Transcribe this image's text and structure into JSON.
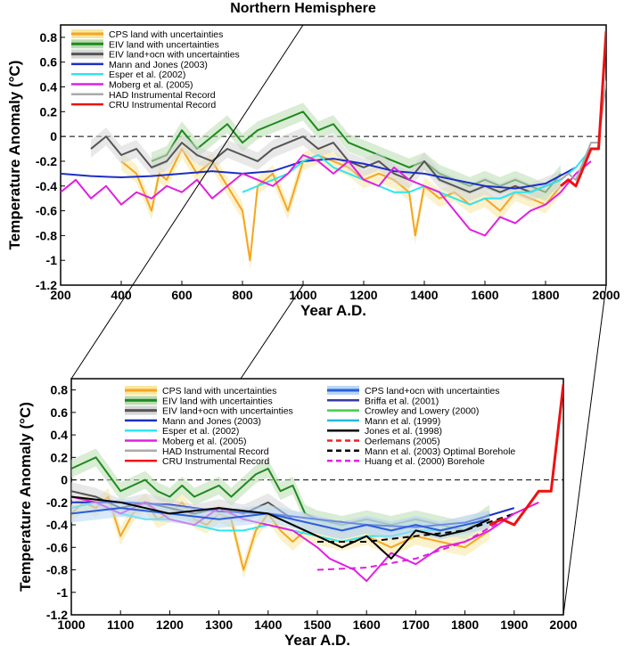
{
  "chart_data": [
    {
      "type": "line",
      "title": "Northern Hemisphere",
      "xlabel": "Year A.D.",
      "ylabel": "Temperature Anomaly (°C)",
      "xlim": [
        200,
        2000
      ],
      "ylim": [
        -1.2,
        0.9
      ],
      "xticks": [
        "200",
        "400",
        "600",
        "800",
        "1000",
        "1200",
        "1400",
        "1600",
        "1800",
        "2000"
      ],
      "yticks": [
        "0.8",
        "0.6",
        "0.4",
        "0.2",
        "0",
        "-0.2",
        "-0.4",
        "-0.6",
        "-0.8",
        "-1",
        "-1.2"
      ],
      "reference_line": 0,
      "legend": [
        {
          "label": "CPS land with uncertainties",
          "color": "#f5a623",
          "band": "#f7e7a3"
        },
        {
          "label": "EIV land with uncertainties",
          "color": "#1f8a1f",
          "band": "#b9dcb0"
        },
        {
          "label": "EIV land+ocn with uncertainties",
          "color": "#555555",
          "band": "#d6d6d6"
        },
        {
          "label": "Mann and Jones (2003)",
          "color": "#1c2fc4"
        },
        {
          "label": "Esper et al. (2002)",
          "color": "#2fe6f0"
        },
        {
          "label": "Moberg et al. (2005)",
          "color": "#e020e0"
        },
        {
          "label": "HAD Instrumental Record",
          "color": "#aaaaaa"
        },
        {
          "label": "CRU Instrumental Record",
          "color": "#ee1111"
        }
      ],
      "series": [
        {
          "name": "CPS land with uncertainties",
          "x": [
            400,
            450,
            500,
            525,
            550,
            600,
            650,
            700,
            750,
            800,
            825,
            850,
            900,
            950,
            1000,
            1050,
            1100,
            1150,
            1200,
            1250,
            1300,
            1350,
            1370,
            1400,
            1450,
            1500,
            1550,
            1600,
            1650,
            1700,
            1750,
            1800,
            1850
          ],
          "y": [
            -0.2,
            -0.3,
            -0.6,
            -0.3,
            -0.35,
            -0.1,
            -0.3,
            -0.2,
            -0.4,
            -0.6,
            -1.0,
            -0.4,
            -0.3,
            -0.6,
            -0.2,
            -0.15,
            -0.2,
            -0.25,
            -0.35,
            -0.3,
            -0.35,
            -0.45,
            -0.8,
            -0.4,
            -0.5,
            -0.45,
            -0.55,
            -0.5,
            -0.6,
            -0.45,
            -0.5,
            -0.55,
            -0.4
          ]
        },
        {
          "name": "EIV land with uncertainties",
          "x": [
            500,
            550,
            600,
            650,
            700,
            750,
            800,
            850,
            900,
            950,
            1000,
            1050,
            1100,
            1150,
            1200,
            1250,
            1300,
            1350,
            1400,
            1450,
            1500,
            1550,
            1600,
            1650,
            1700,
            1750,
            1800,
            1850
          ],
          "y": [
            -0.2,
            -0.15,
            0.05,
            -0.1,
            0.0,
            0.1,
            -0.05,
            0.05,
            0.1,
            0.15,
            0.2,
            0.05,
            0.1,
            -0.05,
            -0.1,
            -0.15,
            -0.2,
            -0.25,
            -0.2,
            -0.3,
            -0.35,
            -0.4,
            -0.35,
            -0.4,
            -0.35,
            -0.4,
            -0.45,
            -0.3
          ]
        },
        {
          "name": "EIV land+ocn with uncertainties",
          "x": [
            300,
            350,
            400,
            450,
            500,
            550,
            600,
            650,
            700,
            750,
            800,
            850,
            900,
            950,
            1000,
            1050,
            1100,
            1150,
            1200,
            1250,
            1300,
            1350,
            1400,
            1450,
            1500,
            1550,
            1600,
            1650,
            1700,
            1750,
            1800,
            1850
          ],
          "y": [
            -0.1,
            0.0,
            -0.15,
            -0.1,
            -0.25,
            -0.2,
            -0.05,
            -0.15,
            -0.2,
            -0.1,
            -0.15,
            -0.2,
            -0.1,
            -0.05,
            0.0,
            -0.1,
            -0.05,
            -0.2,
            -0.25,
            -0.2,
            -0.3,
            -0.35,
            -0.2,
            -0.35,
            -0.4,
            -0.45,
            -0.4,
            -0.45,
            -0.4,
            -0.45,
            -0.4,
            -0.35
          ]
        },
        {
          "name": "Mann and Jones (2003)",
          "x": [
            200,
            300,
            400,
            500,
            600,
            700,
            800,
            900,
            1000,
            1100,
            1200,
            1300,
            1400,
            1500,
            1600,
            1700,
            1800,
            1900
          ],
          "y": [
            -0.3,
            -0.32,
            -0.33,
            -0.32,
            -0.3,
            -0.28,
            -0.3,
            -0.28,
            -0.2,
            -0.18,
            -0.22,
            -0.28,
            -0.3,
            -0.35,
            -0.4,
            -0.42,
            -0.38,
            -0.25
          ]
        },
        {
          "name": "Esper et al. (2002)",
          "x": [
            800,
            850,
            900,
            950,
            1000,
            1050,
            1100,
            1150,
            1200,
            1250,
            1300,
            1350,
            1400,
            1450,
            1500,
            1550,
            1600,
            1650,
            1700,
            1750,
            1800,
            1850,
            1900,
            1950
          ],
          "y": [
            -0.45,
            -0.4,
            -0.35,
            -0.3,
            -0.2,
            -0.15,
            -0.25,
            -0.3,
            -0.35,
            -0.4,
            -0.45,
            -0.45,
            -0.4,
            -0.45,
            -0.5,
            -0.55,
            -0.5,
            -0.5,
            -0.45,
            -0.45,
            -0.4,
            -0.35,
            -0.25,
            -0.1
          ]
        },
        {
          "name": "Moberg et al. (2005)",
          "x": [
            200,
            250,
            300,
            350,
            400,
            450,
            500,
            550,
            600,
            650,
            700,
            750,
            800,
            850,
            900,
            950,
            1000,
            1050,
            1100,
            1150,
            1200,
            1250,
            1300,
            1350,
            1400,
            1450,
            1500,
            1550,
            1600,
            1650,
            1700,
            1750,
            1800,
            1850,
            1900,
            1950
          ],
          "y": [
            -0.45,
            -0.35,
            -0.5,
            -0.4,
            -0.55,
            -0.45,
            -0.5,
            -0.4,
            -0.45,
            -0.35,
            -0.5,
            -0.4,
            -0.3,
            -0.35,
            -0.4,
            -0.3,
            -0.15,
            -0.2,
            -0.3,
            -0.2,
            -0.35,
            -0.4,
            -0.25,
            -0.35,
            -0.4,
            -0.45,
            -0.6,
            -0.75,
            -0.8,
            -0.65,
            -0.7,
            -0.6,
            -0.55,
            -0.45,
            -0.3,
            -0.2
          ]
        },
        {
          "name": "HAD Instrumental Record",
          "x": [
            1850,
            1875,
            1900,
            1925,
            1950,
            1975,
            2000
          ],
          "y": [
            -0.35,
            -0.3,
            -0.35,
            -0.2,
            -0.05,
            -0.05,
            0.45
          ]
        },
        {
          "name": "CRU Instrumental Record",
          "x": [
            1850,
            1875,
            1900,
            1925,
            1950,
            1975,
            2000
          ],
          "y": [
            -0.4,
            -0.35,
            -0.4,
            -0.25,
            -0.1,
            -0.1,
            0.85
          ]
        }
      ]
    },
    {
      "type": "line",
      "title": "",
      "xlabel": "Year A.D.",
      "ylabel": "Temperature Anomaly (°C)",
      "xlim": [
        1000,
        2000
      ],
      "ylim": [
        -1.2,
        0.9
      ],
      "xticks": [
        "1000",
        "1100",
        "1200",
        "1300",
        "1400",
        "1500",
        "1600",
        "1700",
        "1800",
        "1900",
        "2000"
      ],
      "yticks": [
        "0.8",
        "0.6",
        "0.4",
        "0.2",
        "0",
        "-0.2",
        "-0.4",
        "-0.6",
        "-0.8",
        "-1",
        "-1.2"
      ],
      "reference_line": 0,
      "legend": [
        {
          "label": "CPS land with uncertainties",
          "color": "#f5a623",
          "band": "#f7e7a3"
        },
        {
          "label": "EIV land with uncertainties",
          "color": "#1f8a1f",
          "band": "#b9dcb0"
        },
        {
          "label": "EIV land+ocn with uncertainties",
          "color": "#555555",
          "band": "#d6d6d6"
        },
        {
          "label": "Mann and Jones (2003)",
          "color": "#1c2fc4"
        },
        {
          "label": "Esper et al. (2002)",
          "color": "#2fe6f0"
        },
        {
          "label": "Moberg et al. (2005)",
          "color": "#e020e0"
        },
        {
          "label": "HAD Instrumental Record",
          "color": "#aaaaaa"
        },
        {
          "label": "CRU Instrumental Record",
          "color": "#ee1111"
        },
        {
          "label": "CPS land+ocn with uncertainties",
          "color": "#2b5fd9",
          "band": "#b8d8f5"
        },
        {
          "label": "Briffa et al. (2001)",
          "color": "#3a3aa0"
        },
        {
          "label": "Crowley and Lowery (2000)",
          "color": "#44cc44"
        },
        {
          "label": "Mann et al. (1999)",
          "color": "#22bbdd"
        },
        {
          "label": "Jones et al. (1998)",
          "color": "#000000"
        },
        {
          "label": "Oerlemans (2005)",
          "color": "#ee2222",
          "dash": true
        },
        {
          "label": "Mann et al. (2003) Optimal Borehole",
          "color": "#000000",
          "dash": true
        },
        {
          "label": "Huang et al. (2000) Borehole",
          "color": "#e020e0",
          "dash": true
        }
      ],
      "series": [
        {
          "name": "EIV land with uncertainties",
          "x": [
            1000,
            1025,
            1050,
            1075,
            1100,
            1125,
            1150,
            1175,
            1200,
            1225,
            1250,
            1275,
            1300,
            1325,
            1350,
            1375,
            1400,
            1425,
            1450,
            1475,
            1500,
            1550,
            1600,
            1650,
            1700,
            1750,
            1800,
            1850
          ],
          "y": [
            0.1,
            0.15,
            0.2,
            0.05,
            -0.1,
            -0.05,
            0.0,
            -0.1,
            -0.15,
            -0.05,
            -0.15,
            -0.1,
            -0.05,
            -0.15,
            -0.05,
            0.05,
            0.1,
            -0.1,
            -0.05,
            -0.3,
            -0.35,
            -0.4,
            -0.35,
            -0.4,
            -0.35,
            -0.4,
            -0.45,
            -0.3
          ]
        },
        {
          "name": "CPS land with uncertainties",
          "x": [
            1000,
            1025,
            1050,
            1075,
            1100,
            1125,
            1150,
            1175,
            1200,
            1225,
            1250,
            1275,
            1300,
            1325,
            1350,
            1375,
            1400,
            1425,
            1450,
            1475,
            1500,
            1550,
            1600,
            1650,
            1700,
            1750,
            1800,
            1850
          ],
          "y": [
            -0.3,
            -0.2,
            -0.25,
            -0.15,
            -0.5,
            -0.3,
            -0.2,
            -0.35,
            -0.3,
            -0.2,
            -0.35,
            -0.4,
            -0.3,
            -0.35,
            -0.8,
            -0.45,
            -0.3,
            -0.45,
            -0.55,
            -0.45,
            -0.5,
            -0.55,
            -0.5,
            -0.6,
            -0.5,
            -0.55,
            -0.6,
            -0.45
          ]
        },
        {
          "name": "EIV land+ocn with uncertainties",
          "x": [
            1000,
            1050,
            1100,
            1150,
            1200,
            1250,
            1300,
            1350,
            1400,
            1450,
            1500,
            1550,
            1600,
            1650,
            1700,
            1750,
            1800,
            1850
          ],
          "y": [
            -0.1,
            -0.15,
            -0.25,
            -0.2,
            -0.25,
            -0.3,
            -0.25,
            -0.3,
            -0.2,
            -0.35,
            -0.4,
            -0.45,
            -0.4,
            -0.45,
            -0.4,
            -0.45,
            -0.4,
            -0.35
          ]
        },
        {
          "name": "Mann and Jones (2003)",
          "x": [
            1000,
            1100,
            1200,
            1300,
            1400,
            1500,
            1600,
            1700,
            1800,
            1900
          ],
          "y": [
            -0.2,
            -0.2,
            -0.22,
            -0.28,
            -0.3,
            -0.35,
            -0.4,
            -0.42,
            -0.38,
            -0.25
          ]
        },
        {
          "name": "Esper et al. (2002)",
          "x": [
            1000,
            1050,
            1100,
            1150,
            1200,
            1250,
            1300,
            1350,
            1400,
            1450,
            1500,
            1550,
            1600,
            1650,
            1700,
            1750,
            1800,
            1850
          ],
          "y": [
            -0.25,
            -0.2,
            -0.3,
            -0.35,
            -0.35,
            -0.4,
            -0.45,
            -0.45,
            -0.4,
            -0.45,
            -0.5,
            -0.55,
            -0.5,
            -0.5,
            -0.45,
            -0.45,
            -0.4,
            -0.35
          ]
        },
        {
          "name": "Moberg et al. (2005)",
          "x": [
            1000,
            1050,
            1100,
            1150,
            1200,
            1250,
            1300,
            1350,
            1400,
            1450,
            1500,
            1525,
            1550,
            1575,
            1600,
            1650,
            1700,
            1750,
            1800,
            1850,
            1900,
            1950
          ],
          "y": [
            -0.15,
            -0.2,
            -0.3,
            -0.2,
            -0.35,
            -0.4,
            -0.25,
            -0.35,
            -0.4,
            -0.45,
            -0.6,
            -0.7,
            -0.75,
            -0.8,
            -0.9,
            -0.65,
            -0.75,
            -0.6,
            -0.55,
            -0.45,
            -0.3,
            -0.2
          ]
        },
        {
          "name": "CPS land+ocn with uncertainties",
          "x": [
            1000,
            1100,
            1200,
            1300,
            1400,
            1500,
            1550,
            1600,
            1650,
            1700,
            1750,
            1800,
            1850
          ],
          "y": [
            -0.3,
            -0.25,
            -0.3,
            -0.35,
            -0.3,
            -0.4,
            -0.45,
            -0.4,
            -0.45,
            -0.4,
            -0.45,
            -0.4,
            -0.35
          ]
        },
        {
          "name": "Jones et al. (1998)",
          "x": [
            1000,
            1100,
            1200,
            1300,
            1400,
            1500,
            1550,
            1600,
            1650,
            1700,
            1750,
            1800,
            1850
          ],
          "y": [
            -0.15,
            -0.2,
            -0.3,
            -0.25,
            -0.3,
            -0.5,
            -0.6,
            -0.5,
            -0.7,
            -0.45,
            -0.5,
            -0.45,
            -0.35
          ]
        },
        {
          "name": "Mann et al. (2003) Optimal Borehole",
          "x": [
            1500,
            1600,
            1700,
            1800,
            1900
          ],
          "y": [
            -0.55,
            -0.55,
            -0.5,
            -0.45,
            -0.3
          ]
        },
        {
          "name": "Huang et al. (2000) Borehole",
          "x": [
            1500,
            1600,
            1700,
            1800,
            1900
          ],
          "y": [
            -0.8,
            -0.78,
            -0.7,
            -0.55,
            -0.3
          ]
        },
        {
          "name": "CRU Instrumental Record",
          "x": [
            1850,
            1875,
            1900,
            1925,
            1950,
            1975,
            2000
          ],
          "y": [
            -0.4,
            -0.35,
            -0.4,
            -0.25,
            -0.1,
            -0.1,
            0.85
          ]
        }
      ]
    }
  ]
}
